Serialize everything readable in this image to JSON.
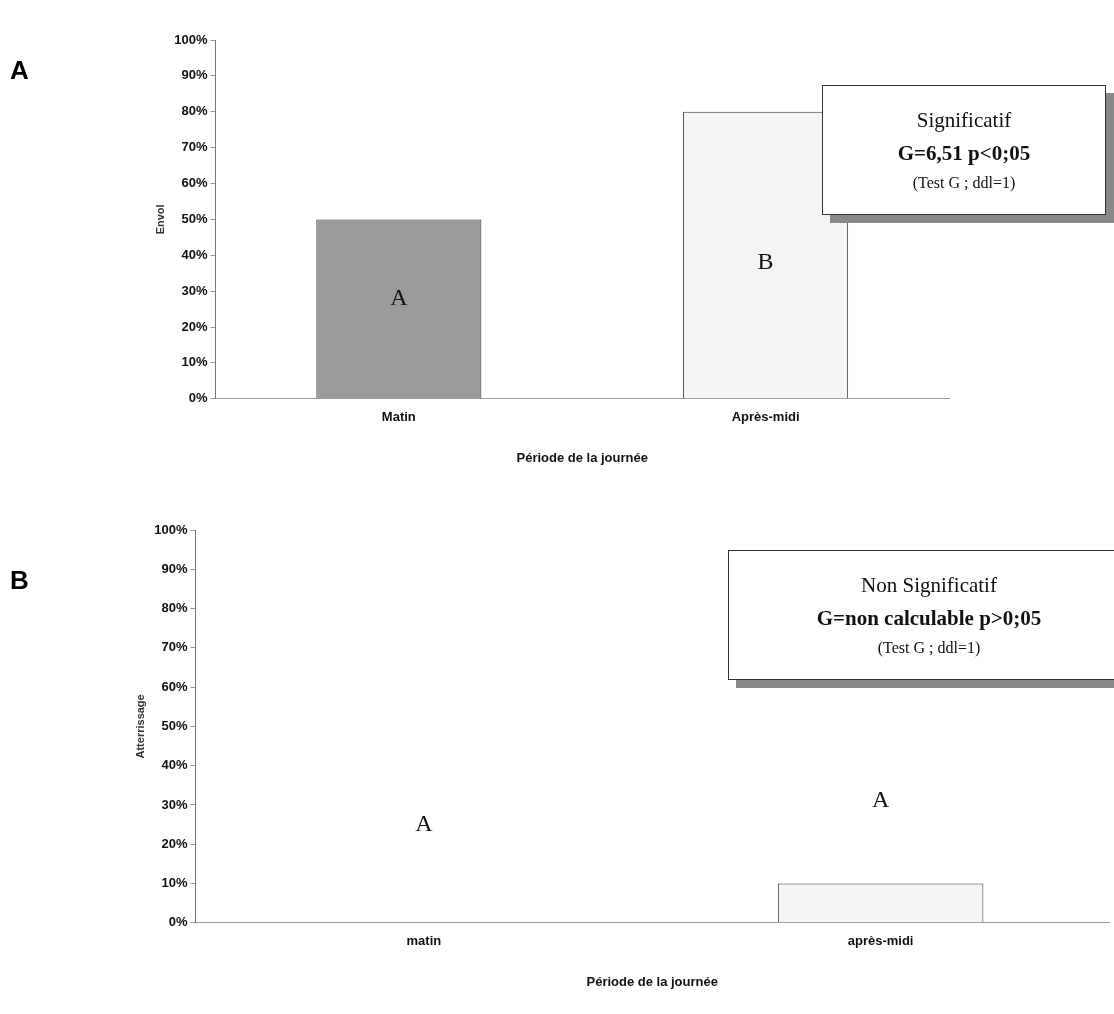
{
  "chart_data": [
    {
      "type": "bar",
      "title": "A",
      "xlabel": "Période de la journée",
      "ylabel": "Envol",
      "categories": [
        "Matin",
        "Après-midi"
      ],
      "values": [
        50,
        80
      ],
      "colors": [
        "#9a9a9a",
        "#f4f4f4"
      ],
      "ylim": [
        0,
        100
      ],
      "yticks": [
        {
          "value": 0,
          "label": "0%"
        },
        {
          "value": 10,
          "label": "10%"
        },
        {
          "value": 20,
          "label": "20%"
        },
        {
          "value": 30,
          "label": "30%"
        },
        {
          "value": 40,
          "label": "40%"
        },
        {
          "value": 50,
          "label": "50%"
        },
        {
          "value": 60,
          "label": "60%"
        },
        {
          "value": 70,
          "label": "70%"
        },
        {
          "value": 80,
          "label": "80%"
        },
        {
          "value": 90,
          "label": "90%"
        },
        {
          "value": 100,
          "label": "100%"
        }
      ],
      "grid": false,
      "legend": false,
      "annotations": [
        "A",
        "B",
        "Significatif",
        "G=6,51  p<0;05",
        "(Test G ; ddl=1)"
      ]
    },
    {
      "type": "bar",
      "title": "B",
      "xlabel": "Période de la journée",
      "ylabel": "Atterrissage",
      "categories": [
        "matin",
        "après-midi"
      ],
      "values": [
        0,
        10
      ],
      "colors": [
        "#f4f4f4",
        "#f4f4f4"
      ],
      "ylim": [
        0,
        100
      ],
      "yticks": [
        {
          "value": 0,
          "label": "0%"
        },
        {
          "value": 10,
          "label": "10%"
        },
        {
          "value": 20,
          "label": "20%"
        },
        {
          "value": 30,
          "label": "30%"
        },
        {
          "value": 40,
          "label": "40%"
        },
        {
          "value": 50,
          "label": "50%"
        },
        {
          "value": 60,
          "label": "60%"
        },
        {
          "value": 70,
          "label": "70%"
        },
        {
          "value": 80,
          "label": "80%"
        },
        {
          "value": 90,
          "label": "90%"
        },
        {
          "value": 100,
          "label": "100%"
        }
      ],
      "grid": false,
      "legend": false,
      "annotations": [
        "A",
        "A",
        "Non Significatif",
        "G=non calculable  p>0;05",
        "(Test G ; ddl=1)"
      ]
    }
  ]
}
